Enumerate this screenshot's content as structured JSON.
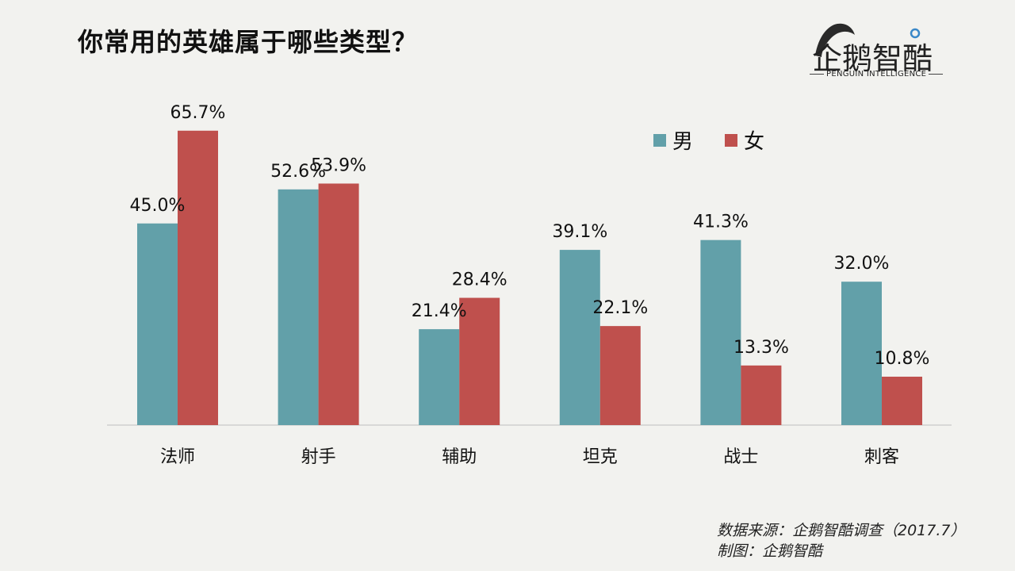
{
  "title": "你常用的英雄属于哪些类型？",
  "logo": {
    "name": "企鹅智酷",
    "subtitle": "PENGUIN INTELLIGENCE"
  },
  "source": {
    "line1": "数据来源：企鹅智酷调查（2017.7）",
    "line2": "制图：企鹅智酷"
  },
  "colors": {
    "male": "#62a0a9",
    "female": "#bf504d",
    "background": "#f2f2ef",
    "axis": "#cfcfcf"
  },
  "chart_data": {
    "type": "bar",
    "categories": [
      "法师",
      "射手",
      "辅助",
      "坦克",
      "战士",
      "刺客"
    ],
    "series": [
      {
        "name": "男",
        "values": [
          45.0,
          52.6,
          21.4,
          39.1,
          41.3,
          32.0
        ],
        "labels": [
          "45.0%",
          "52.6%",
          "21.4%",
          "39.1%",
          "41.3%",
          "32.0%"
        ]
      },
      {
        "name": "女",
        "values": [
          65.7,
          53.9,
          28.4,
          22.1,
          13.3,
          10.8
        ],
        "labels": [
          "65.7%",
          "53.9%",
          "28.4%",
          "22.1%",
          "13.3%",
          "10.8%"
        ]
      }
    ],
    "title": "你常用的英雄属于哪些类型？",
    "xlabel": "",
    "ylabel": "",
    "ylim": [
      0,
      70
    ],
    "grid": false,
    "legend": "top-right"
  }
}
